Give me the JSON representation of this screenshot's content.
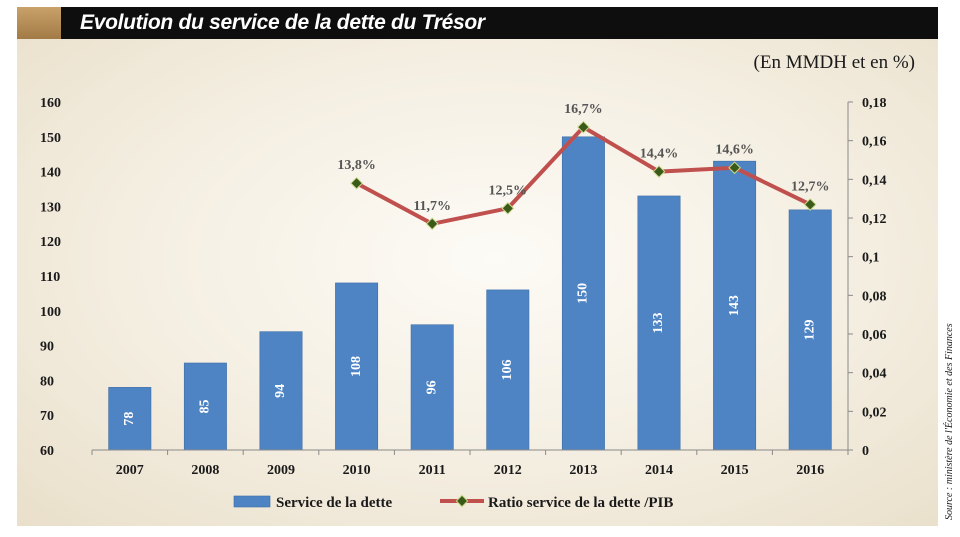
{
  "header": {
    "title": "Evolution du service de la dette du Trésor"
  },
  "unit_note": "(En MMDH et en %)",
  "source_note": "Source : ministère de l'Économie et des Finances",
  "colors": {
    "bar": "#4f84c4",
    "line": "#c0504d",
    "marker": "#3a5a1a"
  },
  "chart_data": {
    "type": "bar",
    "title": "Evolution du service de la dette du Trésor",
    "categories": [
      "2007",
      "2008",
      "2009",
      "2010",
      "2011",
      "2012",
      "2013",
      "2014",
      "2015",
      "2016"
    ],
    "y_left": {
      "ylim": [
        60,
        160
      ],
      "ticks": [
        "60",
        "70",
        "80",
        "90",
        "100",
        "110",
        "120",
        "130",
        "140",
        "150",
        "160"
      ]
    },
    "y_right": {
      "ylim": [
        0,
        0.18
      ],
      "ticks": [
        "0",
        "0,02",
        "0,04",
        "0,06",
        "0,08",
        "0,1",
        "0,12",
        "0,14",
        "0,16",
        "0,18"
      ]
    },
    "series": [
      {
        "name": "Service de la dette",
        "type": "bar",
        "axis": "left",
        "values": [
          78,
          85,
          94,
          108,
          96,
          106,
          150,
          133,
          143,
          129
        ],
        "labels": [
          "78",
          "85",
          "94",
          "108",
          "96",
          "106",
          "150",
          "133",
          "143",
          "129"
        ]
      },
      {
        "name": "Ratio service de la dette /PIB",
        "type": "line",
        "axis": "right",
        "x": [
          "2010",
          "2011",
          "2012",
          "2013",
          "2014",
          "2015",
          "2016"
        ],
        "values": [
          0.138,
          0.117,
          0.125,
          0.167,
          0.144,
          0.146,
          0.127
        ],
        "labels": [
          "13,8%",
          "11,7%",
          "12,5%",
          "16,7%",
          "14,4%",
          "14,6%",
          "12,7%"
        ]
      }
    ],
    "legend": "bottom",
    "grid": false
  }
}
